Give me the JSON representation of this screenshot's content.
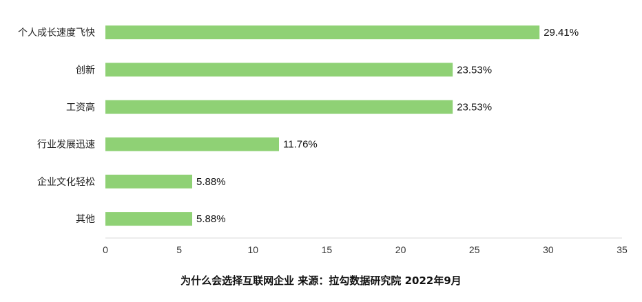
{
  "chart_data": {
    "type": "bar",
    "orientation": "horizontal",
    "categories": [
      "个人成长速度飞快",
      "创新",
      "工资高",
      "行业发展迅速",
      "企业文化轻松",
      "其他"
    ],
    "values": [
      29.41,
      23.53,
      23.53,
      11.76,
      5.88,
      5.88
    ],
    "data_labels": [
      "29.41%",
      "23.53%",
      "23.53%",
      "11.76%",
      "5.88%",
      "5.88%"
    ],
    "xlim": [
      0,
      35
    ],
    "x_ticks": [
      0,
      5,
      10,
      15,
      20,
      25,
      30,
      35
    ],
    "grid": false,
    "bar_color": "#8fd175",
    "caption": "为什么会选择互联网企业 来源：拉勾数据研究院 2022年9月"
  }
}
